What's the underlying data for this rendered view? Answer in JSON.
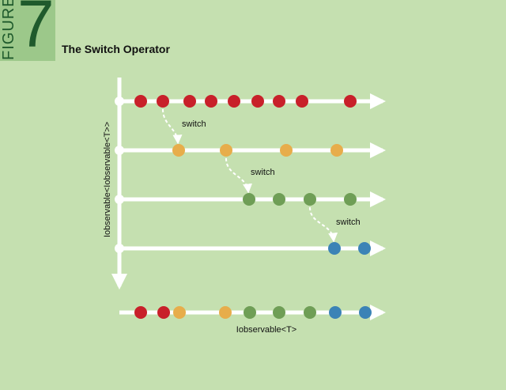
{
  "figure": {
    "label": "FIGURE",
    "number": "7",
    "title": "The Switch Operator"
  },
  "diagram": {
    "outer_label": "Iobservable<Iobservable<T>>",
    "result_label": "Iobservable<T>",
    "switch_label": "switch",
    "colors": {
      "line": "#ffffff",
      "red": "#c8202a",
      "orange": "#e7ad4b",
      "green": "#6f9e56",
      "blue": "#3b83b6"
    },
    "streams": [
      {
        "color": "red",
        "events": [
          "r1",
          "r2",
          "r3",
          "r4",
          "r5",
          "r6",
          "r7",
          "r8",
          "r9"
        ]
      },
      {
        "color": "orange",
        "events": [
          "o1",
          "o2",
          "o3",
          "o4"
        ]
      },
      {
        "color": "green",
        "events": [
          "g1",
          "g2",
          "g3",
          "g4"
        ]
      },
      {
        "color": "blue",
        "events": [
          "b1",
          "b2"
        ]
      }
    ],
    "result_events": [
      "r1",
      "r2",
      "o1",
      "o2",
      "g1",
      "g2",
      "g3",
      "b1",
      "b2"
    ]
  }
}
